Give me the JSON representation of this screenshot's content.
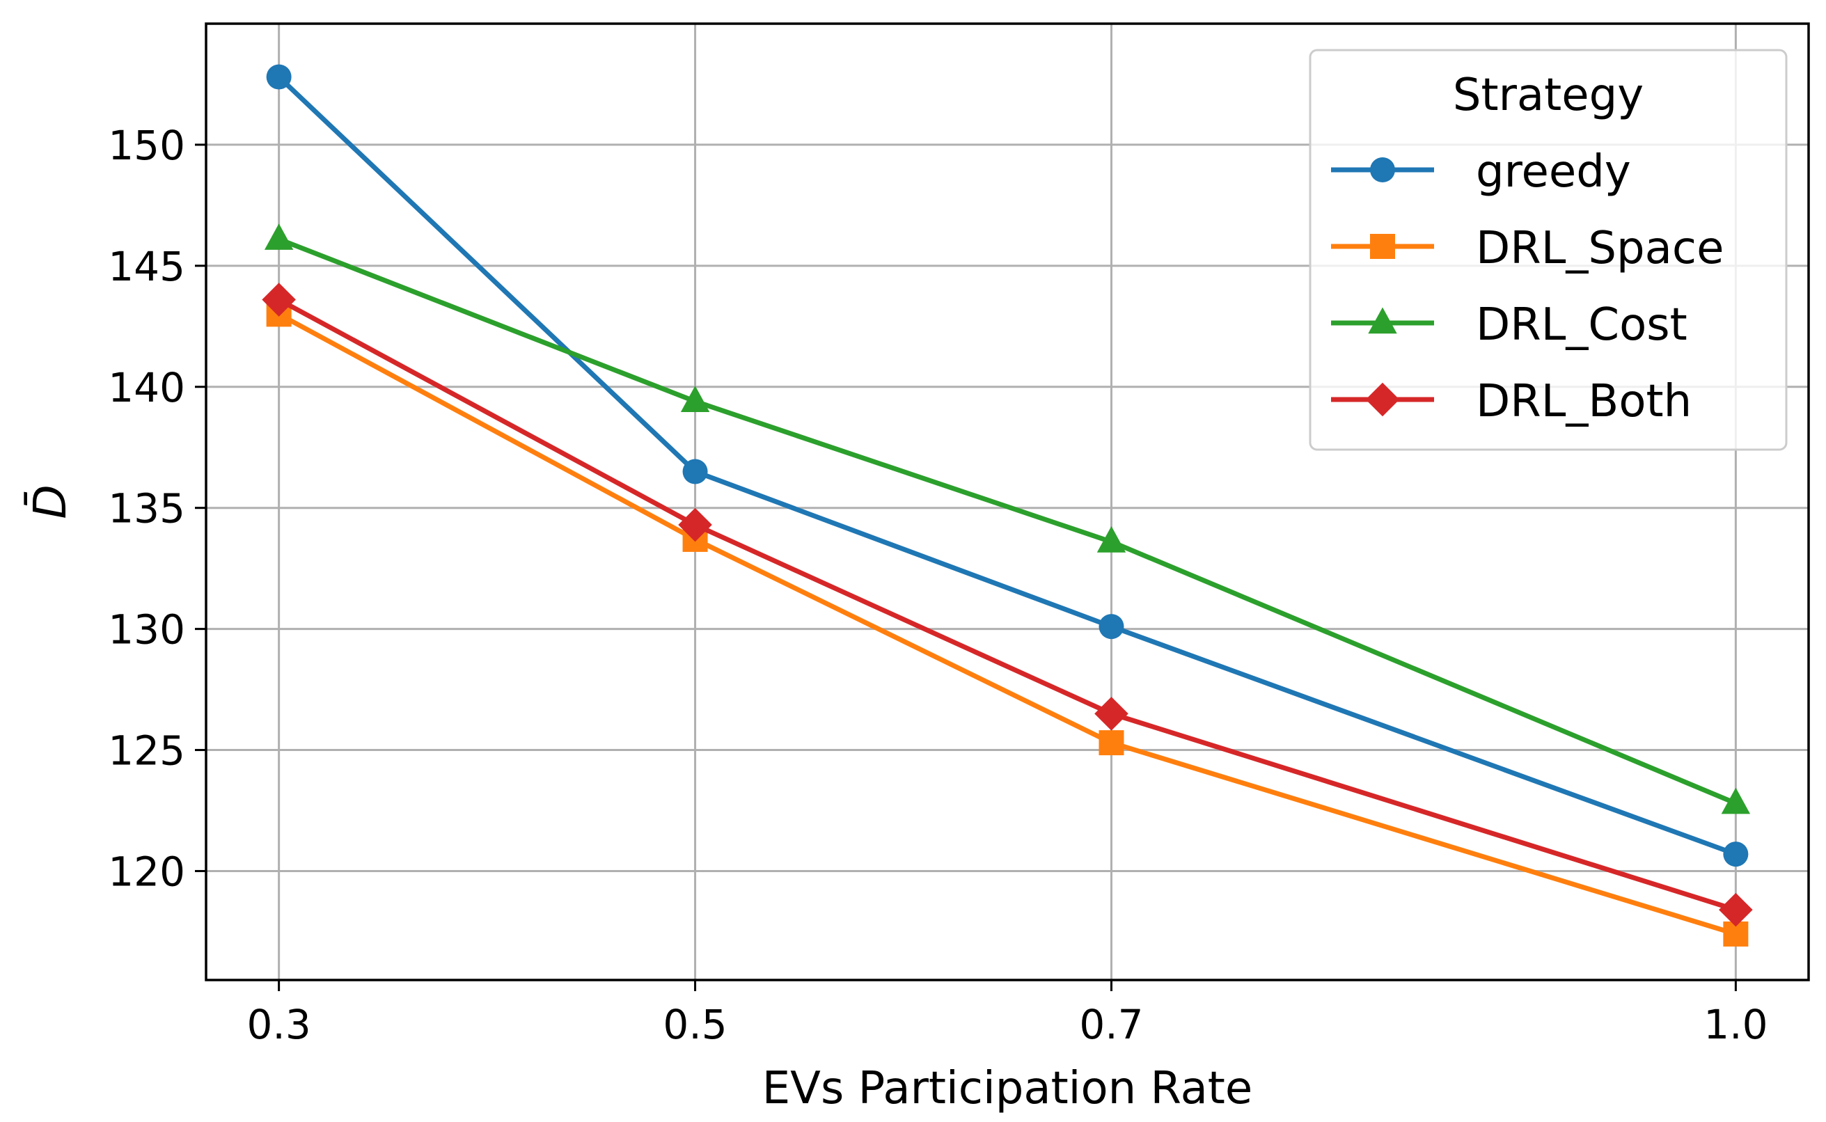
{
  "chart_data": {
    "type": "line",
    "title": "",
    "xlabel": "EVs Participation Rate",
    "ylabel": "D̄",
    "x": [
      0.3,
      0.5,
      0.7,
      1.0
    ],
    "x_tick_labels": [
      "0.3",
      "0.5",
      "0.7",
      "1.0"
    ],
    "y_ticks": [
      120,
      125,
      130,
      135,
      140,
      145,
      150
    ],
    "y_tick_labels": [
      "120",
      "125",
      "130",
      "135",
      "140",
      "145",
      "150"
    ],
    "xlim": [
      0.265,
      1.035
    ],
    "ylim": [
      115.5,
      155.0
    ],
    "grid": true,
    "legend": {
      "title": "Strategy",
      "position": "top-right"
    },
    "series": [
      {
        "name": "greedy",
        "values": [
          152.8,
          136.5,
          130.1,
          120.7
        ],
        "color": "#1f77b4",
        "marker": "circle"
      },
      {
        "name": "DRL_Space",
        "values": [
          143.0,
          133.7,
          125.3,
          117.4
        ],
        "color": "#ff7f0e",
        "marker": "square"
      },
      {
        "name": "DRL_Cost",
        "values": [
          146.1,
          139.4,
          133.6,
          122.8
        ],
        "color": "#2ca02c",
        "marker": "triangle"
      },
      {
        "name": "DRL_Both",
        "values": [
          143.6,
          134.3,
          126.5,
          118.4
        ],
        "color": "#d62728",
        "marker": "diamond"
      }
    ]
  }
}
